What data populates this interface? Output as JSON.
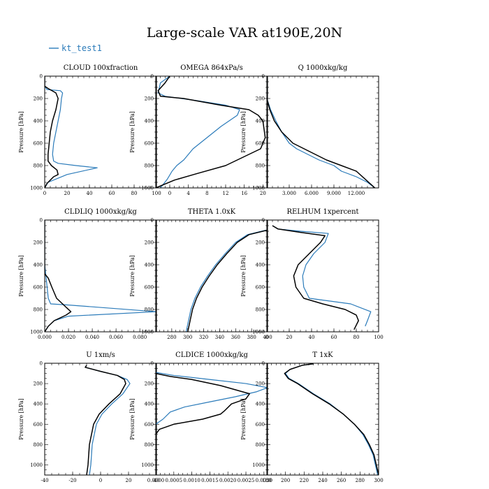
{
  "title": "Large-scale VAR at190E,20N",
  "legend": {
    "label": "kt_test1",
    "color": "#2b7bba"
  },
  "colors": {
    "series_a": "#2b7bba",
    "series_b": "#000000"
  },
  "chart_data": [
    {
      "type": "line",
      "title": "CLOUD  100xfraction",
      "ylabel": "Pressure [hPa]",
      "xlim": [
        0,
        100
      ],
      "ylim": [
        1000,
        0
      ],
      "grid": false,
      "xticks": [
        0,
        20,
        40,
        60,
        80,
        100
      ],
      "xtick_labels": [
        "0",
        "20",
        "40",
        "60",
        "80",
        "100"
      ],
      "yticks": [
        0,
        200,
        400,
        600,
        800,
        1000
      ],
      "series": [
        {
          "name": "kt_test1",
          "x": [
            0,
            0,
            2,
            14,
            16,
            15,
            14,
            12,
            10,
            8,
            7,
            8,
            12,
            28,
            47,
            20,
            3,
            0
          ],
          "y": [
            0,
            90,
            120,
            130,
            150,
            200,
            300,
            400,
            500,
            600,
            700,
            760,
            780,
            800,
            820,
            880,
            950,
            1000
          ]
        },
        {
          "x": [
            0,
            0,
            3,
            10,
            12,
            10,
            7,
            5,
            4,
            3,
            3,
            6,
            11,
            12,
            8,
            2,
            0
          ],
          "y": [
            0,
            90,
            110,
            150,
            200,
            300,
            400,
            500,
            600,
            700,
            760,
            800,
            840,
            880,
            900,
            960,
            1000
          ]
        }
      ]
    },
    {
      "type": "line",
      "title": "OMEGA  864xPa/s",
      "ylabel": "Pressure [hPa]",
      "xlim": [
        -3,
        21
      ],
      "ylim": [
        1000,
        0
      ],
      "grid": false,
      "xticks": [
        0,
        4,
        8,
        12,
        16,
        20
      ],
      "xtick_labels": [
        "0",
        "4",
        "8",
        "12",
        "16",
        "20"
      ],
      "yticks": [
        0,
        200,
        400,
        600,
        800,
        1000
      ],
      "series": [
        {
          "name": "kt_test1",
          "x": [
            0,
            -2,
            -2.5,
            -1,
            6,
            12,
            15,
            14.5,
            11,
            8,
            5,
            3,
            1.5,
            0.5,
            -0.5,
            -2
          ],
          "y": [
            0,
            60,
            150,
            180,
            220,
            260,
            300,
            350,
            450,
            550,
            650,
            750,
            800,
            850,
            920,
            1000
          ]
        },
        {
          "x": [
            0,
            -1,
            -2.5,
            -2,
            3,
            11,
            17,
            19,
            20,
            20.5,
            19.5,
            17,
            12,
            6,
            1,
            -3
          ],
          "y": [
            0,
            60,
            130,
            180,
            200,
            260,
            300,
            350,
            400,
            550,
            650,
            700,
            800,
            870,
            930,
            1000
          ]
        }
      ]
    },
    {
      "type": "line",
      "title": "Q  1000xkg/kg",
      "ylabel": "Pressure [hPa]",
      "xlim": [
        0,
        15
      ],
      "ylim": [
        1000,
        0
      ],
      "grid": false,
      "xticks": [
        3,
        6,
        9,
        12
      ],
      "xtick_labels": [
        "3.000",
        "6.000",
        "9.000",
        "12.000"
      ],
      "yticks": [
        0,
        200,
        400,
        600,
        800,
        1000
      ],
      "series": [
        {
          "name": "kt_test1",
          "x": [
            0,
            0,
            0.5,
            1.2,
            2,
            3,
            4,
            5.5,
            7,
            9,
            10,
            12,
            13.5,
            14.5
          ],
          "y": [
            0,
            200,
            300,
            400,
            500,
            600,
            650,
            700,
            750,
            800,
            850,
            900,
            950,
            1000
          ]
        },
        {
          "x": [
            0,
            0,
            0.4,
            1,
            2,
            3.5,
            5,
            6.5,
            8,
            10,
            12,
            14.5
          ],
          "y": [
            0,
            200,
            300,
            400,
            500,
            600,
            650,
            700,
            750,
            800,
            850,
            1000
          ]
        }
      ]
    },
    {
      "type": "line",
      "title": "CLDLIQ  1000xkg/kg",
      "ylabel": "Pressure [hPa]",
      "xlim": [
        0,
        0.094
      ],
      "ylim": [
        1000,
        0
      ],
      "grid": false,
      "xticks": [
        0,
        0.02,
        0.04,
        0.06,
        0.08
      ],
      "xtick_labels": [
        "0.000",
        "0.020",
        "0.040",
        "0.060",
        "0.080"
      ],
      "yticks": [
        0,
        200,
        400,
        600,
        800,
        1000
      ],
      "series": [
        {
          "name": "kt_test1",
          "x": [
            0,
            0,
            0.001,
            0.002,
            0.003,
            0.005,
            0.02,
            0.094,
            0.02,
            0.008,
            0.003,
            0
          ],
          "y": [
            0,
            400,
            500,
            600,
            700,
            750,
            760,
            820,
            860,
            900,
            950,
            1000
          ]
        },
        {
          "x": [
            0,
            0,
            0.003,
            0.006,
            0.01,
            0.015,
            0.022,
            0.018,
            0.008,
            0.003,
            0
          ],
          "y": [
            0,
            480,
            520,
            600,
            700,
            750,
            820,
            850,
            900,
            950,
            1000
          ]
        }
      ]
    },
    {
      "type": "line",
      "title": "THETA  1.0xK",
      "ylabel": "Pressure [hPa]",
      "xlim": [
        260,
        400
      ],
      "ylim": [
        1000,
        0
      ],
      "grid": false,
      "xticks": [
        280,
        300,
        320,
        340,
        360,
        380,
        400
      ],
      "xtick_labels": [
        "280",
        "300",
        "320",
        "340",
        "360",
        "380",
        "400"
      ],
      "yticks": [
        0,
        200,
        400,
        600,
        800,
        1000
      ],
      "series": [
        {
          "name": "kt_test1",
          "x": [
            298,
            301,
            304,
            309,
            316,
            325,
            335,
            347,
            360,
            375,
            398
          ],
          "y": [
            1000,
            900,
            800,
            700,
            600,
            500,
            400,
            300,
            200,
            130,
            90
          ]
        },
        {
          "x": [
            300,
            303,
            306,
            311,
            318,
            327,
            337,
            349,
            362,
            377,
            400
          ],
          "y": [
            1000,
            900,
            800,
            700,
            600,
            500,
            400,
            300,
            200,
            130,
            90
          ]
        }
      ]
    },
    {
      "type": "line",
      "title": "RELHUM  1xpercent",
      "ylabel": "Pressure [hPa]",
      "xlim": [
        0,
        100
      ],
      "ylim": [
        1000,
        0
      ],
      "grid": false,
      "xticks": [
        0,
        20,
        40,
        60,
        80,
        100
      ],
      "xtick_labels": [
        "0",
        "20",
        "40",
        "60",
        "80",
        "100"
      ],
      "yticks": [
        0,
        200,
        400,
        600,
        800,
        1000
      ],
      "series": [
        {
          "name": "kt_test1",
          "x": [
            5,
            10,
            30,
            55,
            52,
            42,
            35,
            32,
            33,
            38,
            75,
            93,
            90,
            88
          ],
          "y": [
            50,
            80,
            100,
            120,
            200,
            300,
            400,
            500,
            600,
            700,
            750,
            820,
            900,
            950
          ]
        },
        {
          "x": [
            5,
            10,
            30,
            52,
            48,
            38,
            28,
            24,
            26,
            33,
            50,
            70,
            80,
            82,
            78
          ],
          "y": [
            50,
            80,
            110,
            140,
            200,
            300,
            400,
            500,
            600,
            700,
            750,
            800,
            850,
            900,
            980
          ]
        }
      ]
    },
    {
      "type": "line",
      "title": "U  1xm/s",
      "ylabel": "Pressure [hPa]",
      "xlim": [
        -40,
        40
      ],
      "ylim": [
        1100,
        0
      ],
      "grid": false,
      "xticks": [
        -40,
        -20,
        0,
        20,
        40
      ],
      "xtick_labels": [
        "-40",
        "-20",
        "0",
        "20",
        "40"
      ],
      "yticks": [
        0,
        200,
        400,
        600,
        800,
        1000
      ],
      "series": [
        {
          "name": "kt_test1",
          "x": [
            -10,
            -11,
            0,
            12,
            19,
            21,
            16,
            8,
            1,
            -3,
            -6,
            -7,
            -8
          ],
          "y": [
            20,
            40,
            80,
            120,
            160,
            200,
            300,
            400,
            500,
            600,
            800,
            1000,
            1100
          ]
        },
        {
          "x": [
            -10,
            -11,
            0,
            12,
            17,
            18,
            14,
            6,
            -1,
            -5,
            -8,
            -9,
            -10
          ],
          "y": [
            20,
            40,
            80,
            120,
            160,
            200,
            300,
            400,
            500,
            600,
            800,
            1000,
            1100
          ]
        }
      ]
    },
    {
      "type": "line",
      "title": "CLDICE  1000xkg/kg",
      "ylabel": "Pressure [hPa]",
      "xlim": [
        0,
        0.0031
      ],
      "ylim": [
        1100,
        0
      ],
      "grid": false,
      "xticks": [
        0,
        0.0005,
        0.001,
        0.0015,
        0.002,
        0.0025,
        0.003
      ],
      "xtick_labels": [
        "0.0000",
        "0.0005",
        "0.0010",
        "0.0015",
        "0.0020",
        "0.0025",
        "0.0030"
      ],
      "yticks": [
        0,
        200,
        400,
        600,
        800,
        1000
      ],
      "series": [
        {
          "name": "kt_test1",
          "x": [
            0,
            0,
            0.0005,
            0.0015,
            0.0025,
            0.0031,
            0.0028,
            0.0022,
            0.0015,
            0.0008,
            0.0004,
            0.0002,
            0
          ],
          "y": [
            0,
            90,
            120,
            160,
            200,
            240,
            280,
            330,
            380,
            430,
            480,
            550,
            600
          ]
        },
        {
          "x": [
            0,
            0,
            0.0004,
            0.001,
            0.0018,
            0.0024,
            0.0026,
            0.0025,
            0.0021,
            0.0019,
            0.0018,
            0.0013,
            0.0005,
            0.0001,
            0
          ],
          "y": [
            0,
            100,
            130,
            160,
            220,
            280,
            300,
            350,
            400,
            470,
            500,
            550,
            600,
            650,
            700
          ]
        }
      ]
    },
    {
      "type": "line",
      "title": "T  1xK",
      "ylabel": "Pressure [hPa]",
      "xlim": [
        180,
        300
      ],
      "ylim": [
        1100,
        0
      ],
      "grid": false,
      "xticks": [
        180,
        200,
        220,
        240,
        260,
        280,
        300
      ],
      "xtick_labels": [
        "180",
        "200",
        "220",
        "240",
        "260",
        "280",
        "300"
      ],
      "yticks": [
        0,
        200,
        400,
        600,
        800,
        1000
      ],
      "series": [
        {
          "name": "kt_test1",
          "x": [
            230,
            218,
            205,
            200,
            204,
            214,
            230,
            248,
            262,
            274,
            283,
            289,
            294,
            299
          ],
          "y": [
            5,
            20,
            60,
            100,
            150,
            200,
            300,
            400,
            500,
            600,
            700,
            800,
            900,
            1100
          ]
        },
        {
          "x": [
            230,
            218,
            205,
            199,
            203,
            213,
            229,
            247,
            262,
            274,
            284,
            290,
            295,
            300
          ],
          "y": [
            5,
            20,
            60,
            100,
            150,
            200,
            300,
            400,
            500,
            600,
            700,
            800,
            900,
            1100
          ]
        }
      ]
    }
  ]
}
